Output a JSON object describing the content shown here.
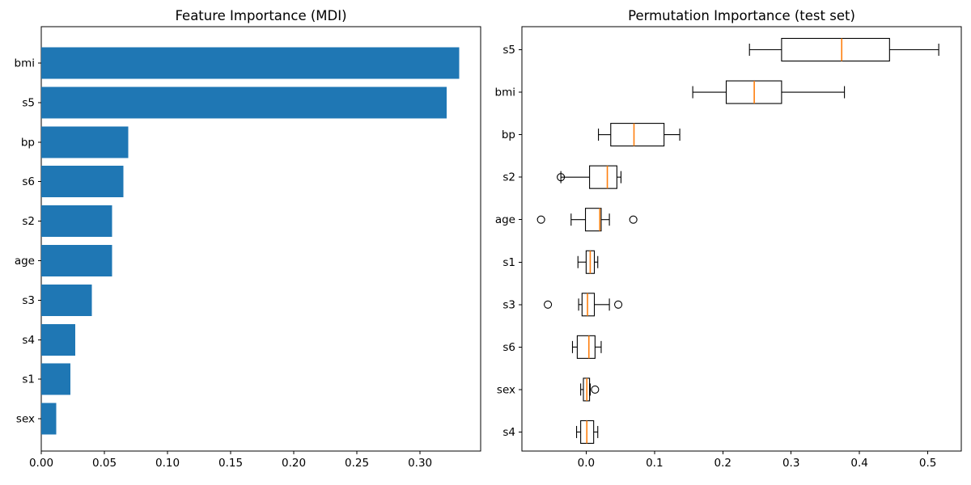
{
  "figure": {
    "background": "#ffffff",
    "bar_color": "#1f77b4",
    "median_color": "#ff7f0e",
    "axis_color": "#000000",
    "text_color": "#000000"
  },
  "chart_data": [
    {
      "type": "bar",
      "orientation": "horizontal",
      "title": "Feature Importance (MDI)",
      "xlabel": "",
      "ylabel": "",
      "grid": false,
      "legend": false,
      "categories": [
        "bmi",
        "s5",
        "bp",
        "s6",
        "s2",
        "age",
        "s3",
        "s4",
        "s1",
        "sex"
      ],
      "values": [
        0.331,
        0.321,
        0.069,
        0.065,
        0.056,
        0.056,
        0.04,
        0.027,
        0.023,
        0.012
      ],
      "xlim": [
        0.0,
        0.348
      ],
      "xticks": [
        0.0,
        0.05,
        0.1,
        0.15,
        0.2,
        0.25,
        0.3
      ],
      "xtick_labels": [
        "0.00",
        "0.05",
        "0.10",
        "0.15",
        "0.20",
        "0.25",
        "0.30"
      ]
    },
    {
      "type": "boxplot",
      "orientation": "horizontal",
      "title": "Permutation Importance (test set)",
      "xlabel": "",
      "ylabel": "",
      "grid": false,
      "legend": false,
      "categories": [
        "s5",
        "bmi",
        "bp",
        "s2",
        "age",
        "s1",
        "s3",
        "s6",
        "sex",
        "s4"
      ],
      "series": [
        {
          "name": "s5",
          "whislo": 0.239,
          "q1": 0.286,
          "med": 0.374,
          "q3": 0.444,
          "whishi": 0.516,
          "fliers": []
        },
        {
          "name": "bmi",
          "whislo": 0.156,
          "q1": 0.205,
          "med": 0.246,
          "q3": 0.286,
          "whishi": 0.378,
          "fliers": []
        },
        {
          "name": "bp",
          "whislo": 0.018,
          "q1": 0.036,
          "med": 0.07,
          "q3": 0.114,
          "whishi": 0.137,
          "fliers": []
        },
        {
          "name": "s2",
          "whislo": -0.037,
          "q1": 0.005,
          "med": 0.031,
          "q3": 0.045,
          "whishi": 0.051,
          "fliers": [
            -0.037
          ]
        },
        {
          "name": "age",
          "whislo": -0.022,
          "q1": -0.001,
          "med": 0.02,
          "q3": 0.022,
          "whishi": 0.034,
          "fliers": [
            -0.066,
            0.069
          ]
        },
        {
          "name": "s1",
          "whislo": -0.012,
          "q1": 0.0,
          "med": 0.006,
          "q3": 0.012,
          "whishi": 0.017,
          "fliers": []
        },
        {
          "name": "s3",
          "whislo": -0.011,
          "q1": -0.006,
          "med": 0.002,
          "q3": 0.012,
          "whishi": 0.034,
          "fliers": [
            -0.056,
            0.047
          ]
        },
        {
          "name": "s6",
          "whislo": -0.02,
          "q1": -0.013,
          "med": 0.004,
          "q3": 0.013,
          "whishi": 0.022,
          "fliers": []
        },
        {
          "name": "sex",
          "whislo": -0.008,
          "q1": -0.004,
          "med": 0.001,
          "q3": 0.005,
          "whishi": 0.006,
          "fliers": [
            0.013
          ]
        },
        {
          "name": "s4",
          "whislo": -0.014,
          "q1": -0.008,
          "med": 0.001,
          "q3": 0.011,
          "whishi": 0.017,
          "fliers": []
        }
      ],
      "xlim": [
        -0.094,
        0.549
      ],
      "xticks": [
        0.0,
        0.1,
        0.2,
        0.3,
        0.4,
        0.5
      ],
      "xtick_labels": [
        "0.0",
        "0.1",
        "0.2",
        "0.3",
        "0.4",
        "0.5"
      ]
    }
  ]
}
